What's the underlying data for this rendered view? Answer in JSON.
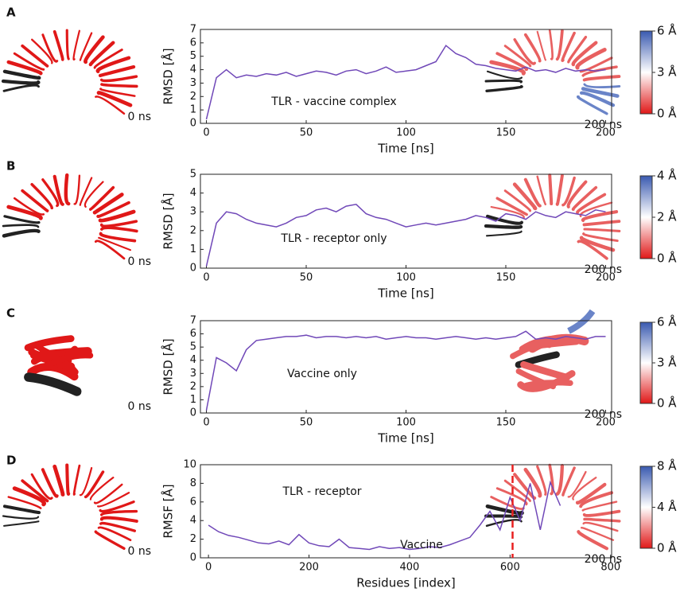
{
  "chart_data": [
    {
      "type": "line",
      "panel_label": "A",
      "x_label": "Time [ns]",
      "y_label": "RMSD [Å]",
      "annotation": "TLR - vaccine complex",
      "start_label": "0 ns",
      "end_label": "200 ns",
      "xlim": [
        -3,
        203
      ],
      "ylim": [
        0,
        7
      ],
      "xticks": [
        0,
        50,
        100,
        150,
        200
      ],
      "yticks": [
        0,
        1,
        2,
        3,
        4,
        5,
        6,
        7
      ],
      "colorbar_lim": [
        0,
        6
      ],
      "colorbar_ticks": [
        {
          "value": 6,
          "label": "6 Å"
        },
        {
          "value": 3,
          "label": "3 Å"
        },
        {
          "value": 0,
          "label": "0 Å"
        }
      ],
      "series": [
        {
          "color": "#7048b8",
          "x": [
            0,
            5,
            10,
            15,
            20,
            25,
            30,
            35,
            40,
            45,
            50,
            55,
            60,
            65,
            70,
            75,
            80,
            85,
            90,
            95,
            100,
            105,
            110,
            115,
            120,
            125,
            130,
            135,
            140,
            145,
            150,
            155,
            160,
            165,
            170,
            175,
            180,
            185,
            190,
            195,
            200
          ],
          "values": [
            0.3,
            3.4,
            4.0,
            3.4,
            3.6,
            3.5,
            3.7,
            3.6,
            3.8,
            3.5,
            3.7,
            3.9,
            3.8,
            3.6,
            3.9,
            4.0,
            3.7,
            3.9,
            4.2,
            3.8,
            3.9,
            4.0,
            4.3,
            4.6,
            5.8,
            5.2,
            4.9,
            4.4,
            4.3,
            4.1,
            4.0,
            3.9,
            4.2,
            3.9,
            4.0,
            3.8,
            4.1,
            3.9,
            4.0,
            3.9,
            4.0
          ]
        }
      ]
    },
    {
      "type": "line",
      "panel_label": "B",
      "x_label": "Time [ns]",
      "y_label": "RMSD [Å]",
      "annotation": "TLR - receptor only",
      "start_label": "0 ns",
      "end_label": "200 ns",
      "xlim": [
        -3,
        203
      ],
      "ylim": [
        0,
        5
      ],
      "xticks": [
        0,
        50,
        100,
        150,
        200
      ],
      "yticks": [
        0,
        1,
        2,
        3,
        4,
        5
      ],
      "colorbar_lim": [
        0,
        4
      ],
      "colorbar_ticks": [
        {
          "value": 4,
          "label": "4 Å"
        },
        {
          "value": 2,
          "label": "2 Å"
        },
        {
          "value": 0,
          "label": "0 Å"
        }
      ],
      "series": [
        {
          "color": "#7048b8",
          "x": [
            0,
            5,
            10,
            15,
            20,
            25,
            30,
            35,
            40,
            45,
            50,
            55,
            60,
            65,
            70,
            75,
            80,
            85,
            90,
            95,
            100,
            105,
            110,
            115,
            120,
            125,
            130,
            135,
            140,
            145,
            150,
            155,
            160,
            165,
            170,
            175,
            180,
            185,
            190,
            195,
            200
          ],
          "values": [
            0.1,
            2.4,
            3.0,
            2.9,
            2.6,
            2.4,
            2.3,
            2.2,
            2.4,
            2.7,
            2.8,
            3.1,
            3.2,
            3.0,
            3.3,
            3.4,
            2.9,
            2.7,
            2.6,
            2.4,
            2.2,
            2.3,
            2.4,
            2.3,
            2.4,
            2.5,
            2.6,
            2.8,
            2.7,
            2.5,
            2.9,
            2.8,
            2.6,
            3.0,
            2.8,
            2.7,
            3.0,
            2.9,
            2.8,
            3.1,
            3.0
          ]
        }
      ]
    },
    {
      "type": "line",
      "panel_label": "C",
      "x_label": "Time [ns]",
      "y_label": "RMSD [Å]",
      "annotation": "Vaccine only",
      "start_label": "0 ns",
      "end_label": "200 ns",
      "xlim": [
        -3,
        203
      ],
      "ylim": [
        0,
        7
      ],
      "xticks": [
        0,
        50,
        100,
        150,
        200
      ],
      "yticks": [
        0,
        1,
        2,
        3,
        4,
        5,
        6,
        7
      ],
      "colorbar_lim": [
        0,
        6
      ],
      "colorbar_ticks": [
        {
          "value": 6,
          "label": "6 Å"
        },
        {
          "value": 3,
          "label": "3 Å"
        },
        {
          "value": 0,
          "label": "0 Å"
        }
      ],
      "series": [
        {
          "color": "#7048b8",
          "x": [
            0,
            5,
            10,
            15,
            20,
            25,
            30,
            35,
            40,
            45,
            50,
            55,
            60,
            65,
            70,
            75,
            80,
            85,
            90,
            95,
            100,
            105,
            110,
            115,
            120,
            125,
            130,
            135,
            140,
            145,
            150,
            155,
            160,
            165,
            170,
            175,
            180,
            185,
            190,
            195,
            200
          ],
          "values": [
            0.2,
            4.2,
            3.8,
            3.2,
            4.8,
            5.5,
            5.6,
            5.7,
            5.8,
            5.8,
            5.9,
            5.7,
            5.8,
            5.8,
            5.7,
            5.8,
            5.7,
            5.8,
            5.6,
            5.7,
            5.8,
            5.7,
            5.7,
            5.6,
            5.7,
            5.8,
            5.7,
            5.6,
            5.7,
            5.6,
            5.7,
            5.8,
            6.2,
            5.6,
            5.7,
            5.6,
            5.8,
            5.7,
            5.6,
            5.8,
            5.8
          ]
        }
      ]
    },
    {
      "type": "line",
      "panel_label": "D",
      "x_label": "Residues [index]",
      "y_label": "RMSF [Å]",
      "annotation": "TLR - receptor",
      "annotation2": "Vaccine",
      "start_label": "0 ns",
      "end_label": "200 ns",
      "xlim": [
        -16,
        802
      ],
      "ylim": [
        0,
        10
      ],
      "xticks": [
        0,
        200,
        400,
        600,
        800
      ],
      "yticks": [
        0,
        2,
        4,
        6,
        8,
        10
      ],
      "divider_x": 605,
      "divider_color": "#e82020",
      "colorbar_lim": [
        0,
        8
      ],
      "colorbar_ticks": [
        {
          "value": 8,
          "label": "8 Å"
        },
        {
          "value": 4,
          "label": "4 Å"
        },
        {
          "value": 0,
          "label": "0 Å"
        }
      ],
      "series": [
        {
          "color": "#7048b8",
          "x": [
            0,
            20,
            40,
            60,
            80,
            100,
            120,
            140,
            160,
            180,
            200,
            220,
            240,
            260,
            280,
            300,
            320,
            340,
            360,
            380,
            400,
            420,
            440,
            460,
            480,
            500,
            520,
            540,
            560,
            580,
            600,
            620,
            640,
            660,
            680,
            700
          ],
          "values": [
            3.5,
            2.8,
            2.4,
            2.2,
            1.9,
            1.6,
            1.5,
            1.8,
            1.4,
            2.5,
            1.6,
            1.3,
            1.2,
            2.0,
            1.1,
            1.0,
            0.9,
            1.2,
            1.0,
            1.1,
            0.9,
            1.0,
            1.2,
            1.1,
            1.4,
            1.8,
            2.2,
            3.5,
            5.0,
            3.0,
            6.5,
            4.0,
            8.0,
            3.0,
            8.1,
            5.6
          ]
        }
      ]
    }
  ]
}
